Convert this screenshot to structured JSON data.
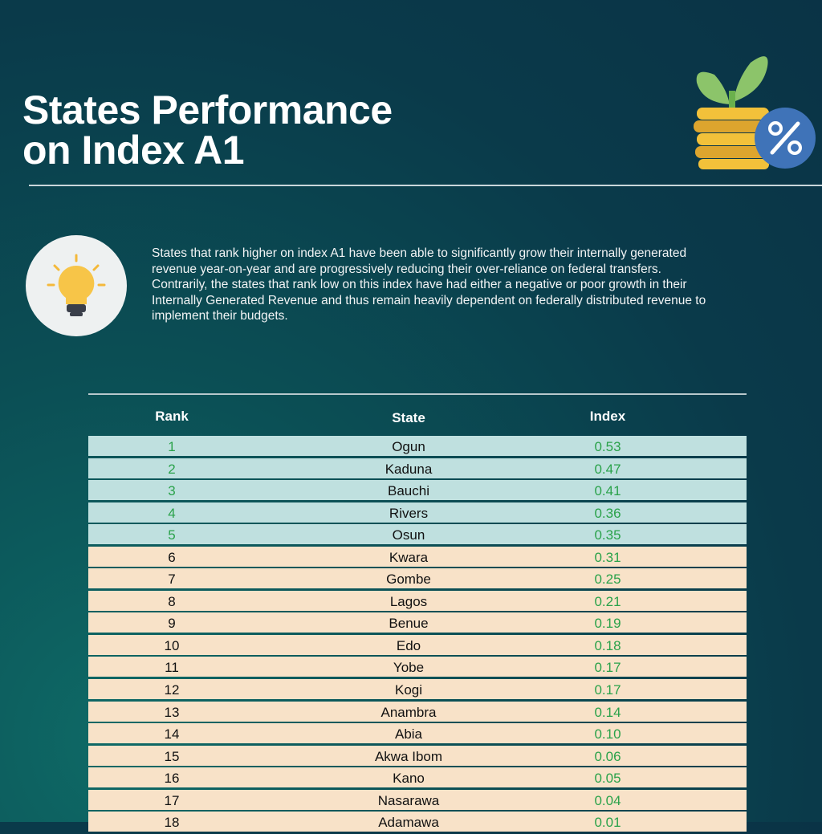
{
  "title_line1": "States Performance",
  "title_line2": "on Index A1",
  "intro": "States that rank higher on index A1 have been able to significantly grow their internally generated revenue year-on-year and are progressively reducing their over-reliance on federal transfers.  Contrarily, the states that rank low on this index have had either a negative or poor growth in their Internally Generated Revenue and thus remain heavily dependent on federally distributed revenue to implement their budgets.",
  "icons": {
    "header": "plant-coins-percent-icon",
    "intro": "lightbulb-icon"
  },
  "colors": {
    "top5": "#bfe0df",
    "rest": "#f8e2c8",
    "index_text": "#2aa24a"
  },
  "table": {
    "headers": [
      "Rank",
      "State",
      "Index"
    ],
    "rows": [
      [
        "1",
        "Ogun",
        "0.53"
      ],
      [
        "2",
        "Kaduna",
        "0.47"
      ],
      [
        "3",
        "Bauchi",
        "0.41"
      ],
      [
        "4",
        "Rivers",
        "0.36"
      ],
      [
        "5",
        "Osun",
        "0.35"
      ],
      [
        "6",
        "Kwara",
        "0.31"
      ],
      [
        "7",
        "Gombe",
        "0.25"
      ],
      [
        "8",
        "Lagos",
        "0.21"
      ],
      [
        "9",
        "Benue",
        "0.19"
      ],
      [
        "10",
        "Edo",
        "0.18"
      ],
      [
        "11",
        "Yobe",
        "0.17"
      ],
      [
        "12",
        "Kogi",
        "0.17"
      ],
      [
        "13",
        "Anambra",
        "0.14"
      ],
      [
        "14",
        "Abia",
        "0.10"
      ],
      [
        "15",
        "Akwa Ibom",
        "0.06"
      ],
      [
        "16",
        "Kano",
        "0.05"
      ],
      [
        "17",
        "Nasarawa",
        "0.04"
      ],
      [
        "18",
        "Adamawa",
        "0.01"
      ]
    ]
  }
}
